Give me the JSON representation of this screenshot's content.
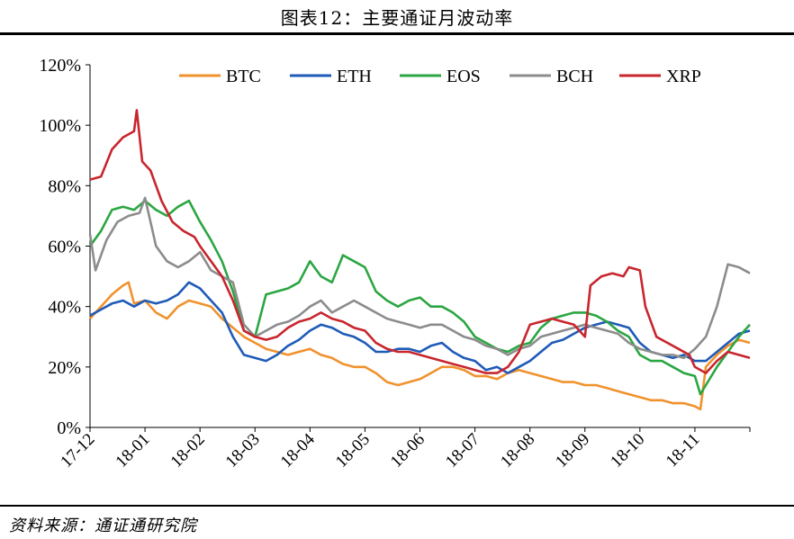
{
  "title": "图表12：主要通证月波动率",
  "source": "资料来源：通证通研究院",
  "chart_data": {
    "type": "line",
    "ylim": [
      0,
      120
    ],
    "yticks": [
      "0%",
      "20%",
      "40%",
      "60%",
      "80%",
      "100%",
      "120%"
    ],
    "xticks": [
      "17-12",
      "18-01",
      "18-02",
      "18-03",
      "18-04",
      "18-05",
      "18-06",
      "18-07",
      "18-08",
      "18-09",
      "18-10",
      "18-11"
    ],
    "xlim": [
      0,
      12
    ],
    "legend_position": "top",
    "series": [
      {
        "name": "BTC",
        "color": "#F0922E",
        "points": [
          [
            0,
            36
          ],
          [
            0.2,
            40
          ],
          [
            0.4,
            44
          ],
          [
            0.6,
            47
          ],
          [
            0.7,
            48
          ],
          [
            0.8,
            41
          ],
          [
            1.0,
            42
          ],
          [
            1.2,
            38
          ],
          [
            1.4,
            36
          ],
          [
            1.6,
            40
          ],
          [
            1.8,
            42
          ],
          [
            2.0,
            41
          ],
          [
            2.2,
            40
          ],
          [
            2.4,
            36
          ],
          [
            2.6,
            33
          ],
          [
            2.8,
            30
          ],
          [
            3.0,
            28
          ],
          [
            3.2,
            26
          ],
          [
            3.4,
            25
          ],
          [
            3.6,
            24
          ],
          [
            3.8,
            25
          ],
          [
            4.0,
            26
          ],
          [
            4.2,
            24
          ],
          [
            4.4,
            23
          ],
          [
            4.6,
            21
          ],
          [
            4.8,
            20
          ],
          [
            5.0,
            20
          ],
          [
            5.2,
            18
          ],
          [
            5.4,
            15
          ],
          [
            5.6,
            14
          ],
          [
            5.8,
            15
          ],
          [
            6.0,
            16
          ],
          [
            6.2,
            18
          ],
          [
            6.4,
            20
          ],
          [
            6.6,
            20
          ],
          [
            6.8,
            19
          ],
          [
            7.0,
            17
          ],
          [
            7.2,
            17
          ],
          [
            7.4,
            16
          ],
          [
            7.6,
            18
          ],
          [
            7.8,
            19
          ],
          [
            8.0,
            18
          ],
          [
            8.2,
            17
          ],
          [
            8.4,
            16
          ],
          [
            8.6,
            15
          ],
          [
            8.8,
            15
          ],
          [
            9.0,
            14
          ],
          [
            9.2,
            14
          ],
          [
            9.4,
            13
          ],
          [
            9.6,
            12
          ],
          [
            9.8,
            11
          ],
          [
            10.0,
            10
          ],
          [
            10.2,
            9
          ],
          [
            10.4,
            9
          ],
          [
            10.6,
            8
          ],
          [
            10.8,
            8
          ],
          [
            11.0,
            7
          ],
          [
            11.1,
            6
          ],
          [
            11.2,
            20
          ],
          [
            11.4,
            24
          ],
          [
            11.6,
            27
          ],
          [
            11.8,
            29
          ],
          [
            12.0,
            28
          ]
        ]
      },
      {
        "name": "ETH",
        "color": "#1F5BB8",
        "points": [
          [
            0,
            37
          ],
          [
            0.2,
            39
          ],
          [
            0.4,
            41
          ],
          [
            0.6,
            42
          ],
          [
            0.8,
            40
          ],
          [
            1.0,
            42
          ],
          [
            1.2,
            41
          ],
          [
            1.4,
            42
          ],
          [
            1.6,
            44
          ],
          [
            1.8,
            48
          ],
          [
            2.0,
            46
          ],
          [
            2.2,
            42
          ],
          [
            2.4,
            38
          ],
          [
            2.6,
            30
          ],
          [
            2.8,
            24
          ],
          [
            3.0,
            23
          ],
          [
            3.2,
            22
          ],
          [
            3.4,
            24
          ],
          [
            3.6,
            27
          ],
          [
            3.8,
            29
          ],
          [
            4.0,
            32
          ],
          [
            4.2,
            34
          ],
          [
            4.4,
            33
          ],
          [
            4.6,
            31
          ],
          [
            4.8,
            30
          ],
          [
            5.0,
            28
          ],
          [
            5.2,
            25
          ],
          [
            5.4,
            25
          ],
          [
            5.6,
            26
          ],
          [
            5.8,
            26
          ],
          [
            6.0,
            25
          ],
          [
            6.2,
            27
          ],
          [
            6.4,
            28
          ],
          [
            6.6,
            25
          ],
          [
            6.8,
            23
          ],
          [
            7.0,
            22
          ],
          [
            7.2,
            19
          ],
          [
            7.4,
            20
          ],
          [
            7.6,
            18
          ],
          [
            7.8,
            20
          ],
          [
            8.0,
            22
          ],
          [
            8.2,
            25
          ],
          [
            8.4,
            28
          ],
          [
            8.6,
            29
          ],
          [
            8.8,
            31
          ],
          [
            9.0,
            33
          ],
          [
            9.2,
            34
          ],
          [
            9.4,
            35
          ],
          [
            9.6,
            34
          ],
          [
            9.8,
            33
          ],
          [
            10.0,
            28
          ],
          [
            10.2,
            25
          ],
          [
            10.4,
            24
          ],
          [
            10.6,
            23
          ],
          [
            10.8,
            24
          ],
          [
            11.0,
            22
          ],
          [
            11.2,
            22
          ],
          [
            11.4,
            25
          ],
          [
            11.6,
            28
          ],
          [
            11.8,
            31
          ],
          [
            12.0,
            32
          ]
        ]
      },
      {
        "name": "EOS",
        "color": "#2BA642",
        "points": [
          [
            0,
            60
          ],
          [
            0.2,
            65
          ],
          [
            0.4,
            72
          ],
          [
            0.6,
            73
          ],
          [
            0.8,
            72
          ],
          [
            1.0,
            75
          ],
          [
            1.2,
            72
          ],
          [
            1.4,
            70
          ],
          [
            1.6,
            73
          ],
          [
            1.8,
            75
          ],
          [
            2.0,
            68
          ],
          [
            2.2,
            62
          ],
          [
            2.4,
            55
          ],
          [
            2.6,
            45
          ],
          [
            2.8,
            32
          ],
          [
            3.0,
            30
          ],
          [
            3.2,
            44
          ],
          [
            3.4,
            45
          ],
          [
            3.6,
            46
          ],
          [
            3.8,
            48
          ],
          [
            4.0,
            55
          ],
          [
            4.2,
            50
          ],
          [
            4.4,
            48
          ],
          [
            4.6,
            57
          ],
          [
            4.8,
            55
          ],
          [
            5.0,
            53
          ],
          [
            5.2,
            45
          ],
          [
            5.4,
            42
          ],
          [
            5.6,
            40
          ],
          [
            5.8,
            42
          ],
          [
            6.0,
            43
          ],
          [
            6.2,
            40
          ],
          [
            6.4,
            40
          ],
          [
            6.6,
            38
          ],
          [
            6.8,
            35
          ],
          [
            7.0,
            30
          ],
          [
            7.2,
            28
          ],
          [
            7.4,
            26
          ],
          [
            7.6,
            25
          ],
          [
            7.8,
            27
          ],
          [
            8.0,
            28
          ],
          [
            8.2,
            33
          ],
          [
            8.4,
            36
          ],
          [
            8.6,
            37
          ],
          [
            8.8,
            38
          ],
          [
            9.0,
            38
          ],
          [
            9.2,
            37
          ],
          [
            9.4,
            35
          ],
          [
            9.6,
            32
          ],
          [
            9.8,
            30
          ],
          [
            10.0,
            24
          ],
          [
            10.2,
            22
          ],
          [
            10.4,
            22
          ],
          [
            10.6,
            20
          ],
          [
            10.8,
            18
          ],
          [
            11.0,
            17
          ],
          [
            11.1,
            11
          ],
          [
            11.2,
            14
          ],
          [
            11.4,
            20
          ],
          [
            11.6,
            25
          ],
          [
            11.8,
            30
          ],
          [
            12.0,
            34
          ]
        ]
      },
      {
        "name": "BCH",
        "color": "#8C8C8C",
        "points": [
          [
            0,
            64
          ],
          [
            0.1,
            52
          ],
          [
            0.3,
            62
          ],
          [
            0.5,
            68
          ],
          [
            0.7,
            70
          ],
          [
            0.9,
            71
          ],
          [
            1.0,
            76
          ],
          [
            1.2,
            60
          ],
          [
            1.4,
            55
          ],
          [
            1.6,
            53
          ],
          [
            1.8,
            55
          ],
          [
            2.0,
            58
          ],
          [
            2.2,
            52
          ],
          [
            2.4,
            50
          ],
          [
            2.6,
            48
          ],
          [
            2.8,
            34
          ],
          [
            3.0,
            30
          ],
          [
            3.2,
            32
          ],
          [
            3.4,
            34
          ],
          [
            3.6,
            35
          ],
          [
            3.8,
            37
          ],
          [
            4.0,
            40
          ],
          [
            4.2,
            42
          ],
          [
            4.4,
            38
          ],
          [
            4.6,
            40
          ],
          [
            4.8,
            42
          ],
          [
            5.0,
            40
          ],
          [
            5.2,
            38
          ],
          [
            5.4,
            36
          ],
          [
            5.6,
            35
          ],
          [
            5.8,
            34
          ],
          [
            6.0,
            33
          ],
          [
            6.2,
            34
          ],
          [
            6.4,
            34
          ],
          [
            6.6,
            32
          ],
          [
            6.8,
            30
          ],
          [
            7.0,
            29
          ],
          [
            7.2,
            27
          ],
          [
            7.4,
            26
          ],
          [
            7.6,
            24
          ],
          [
            7.8,
            26
          ],
          [
            8.0,
            27
          ],
          [
            8.2,
            30
          ],
          [
            8.4,
            31
          ],
          [
            8.6,
            32
          ],
          [
            8.8,
            33
          ],
          [
            9.0,
            34
          ],
          [
            9.2,
            33
          ],
          [
            9.4,
            32
          ],
          [
            9.6,
            31
          ],
          [
            9.8,
            28
          ],
          [
            10.0,
            26
          ],
          [
            10.2,
            25
          ],
          [
            10.4,
            24
          ],
          [
            10.6,
            24
          ],
          [
            10.8,
            23
          ],
          [
            11.0,
            26
          ],
          [
            11.2,
            30
          ],
          [
            11.4,
            40
          ],
          [
            11.6,
            54
          ],
          [
            11.8,
            53
          ],
          [
            12.0,
            51
          ]
        ]
      },
      {
        "name": "XRP",
        "color": "#C8262E",
        "points": [
          [
            0,
            82
          ],
          [
            0.2,
            83
          ],
          [
            0.4,
            92
          ],
          [
            0.6,
            96
          ],
          [
            0.8,
            98
          ],
          [
            0.85,
            105
          ],
          [
            0.95,
            88
          ],
          [
            1.1,
            85
          ],
          [
            1.3,
            75
          ],
          [
            1.5,
            68
          ],
          [
            1.7,
            65
          ],
          [
            1.9,
            63
          ],
          [
            2.0,
            60
          ],
          [
            2.2,
            55
          ],
          [
            2.4,
            50
          ],
          [
            2.6,
            42
          ],
          [
            2.8,
            32
          ],
          [
            3.0,
            30
          ],
          [
            3.2,
            29
          ],
          [
            3.4,
            30
          ],
          [
            3.6,
            33
          ],
          [
            3.8,
            35
          ],
          [
            4.0,
            36
          ],
          [
            4.2,
            38
          ],
          [
            4.4,
            36
          ],
          [
            4.6,
            35
          ],
          [
            4.8,
            33
          ],
          [
            5.0,
            32
          ],
          [
            5.2,
            28
          ],
          [
            5.4,
            26
          ],
          [
            5.6,
            25
          ],
          [
            5.8,
            25
          ],
          [
            6.0,
            24
          ],
          [
            6.2,
            23
          ],
          [
            6.4,
            22
          ],
          [
            6.6,
            21
          ],
          [
            6.8,
            20
          ],
          [
            7.0,
            19
          ],
          [
            7.2,
            18
          ],
          [
            7.4,
            18
          ],
          [
            7.6,
            20
          ],
          [
            7.8,
            25
          ],
          [
            8.0,
            34
          ],
          [
            8.2,
            35
          ],
          [
            8.4,
            36
          ],
          [
            8.6,
            35
          ],
          [
            8.8,
            34
          ],
          [
            9.0,
            30
          ],
          [
            9.1,
            47
          ],
          [
            9.3,
            50
          ],
          [
            9.5,
            51
          ],
          [
            9.7,
            50
          ],
          [
            9.8,
            53
          ],
          [
            10.0,
            52
          ],
          [
            10.1,
            40
          ],
          [
            10.3,
            30
          ],
          [
            10.5,
            28
          ],
          [
            10.7,
            26
          ],
          [
            10.9,
            24
          ],
          [
            11.0,
            20
          ],
          [
            11.2,
            18
          ],
          [
            11.4,
            22
          ],
          [
            11.6,
            25
          ],
          [
            11.8,
            24
          ],
          [
            12.0,
            23
          ]
        ]
      }
    ]
  }
}
